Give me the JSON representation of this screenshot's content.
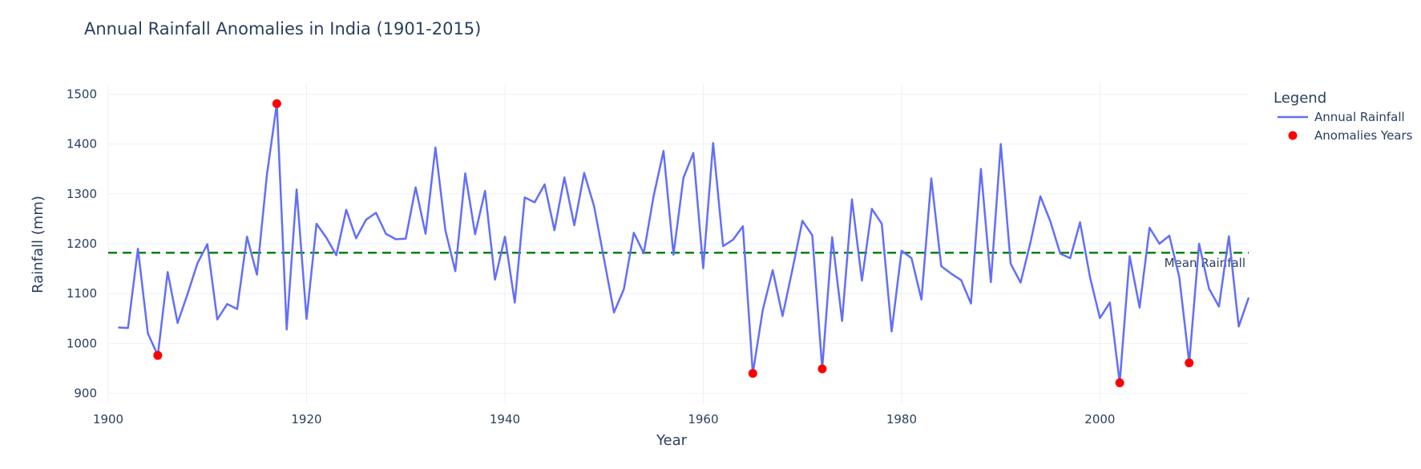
{
  "chart_data": {
    "type": "line",
    "title": "Annual Rainfall Anomalies in India (1901-2015)",
    "xlabel": "Year",
    "ylabel": "Rainfall (mm)",
    "xlim": [
      1900,
      2015
    ],
    "ylim": [
      880,
      1520
    ],
    "xticks": [
      1900,
      1920,
      1940,
      1960,
      1980,
      2000
    ],
    "yticks": [
      900,
      1000,
      1100,
      1200,
      1300,
      1400,
      1500
    ],
    "grid": true,
    "legend": {
      "title": "Legend",
      "position": "top-right"
    },
    "mean_line": {
      "value": 1182,
      "label": "Mean Rainfall",
      "color": "#008000"
    },
    "series": [
      {
        "name": "Annual Rainfall",
        "color": "#636efa",
        "x": [
          1901,
          1902,
          1903,
          1904,
          1905,
          1906,
          1907,
          1908,
          1909,
          1910,
          1911,
          1912,
          1913,
          1914,
          1915,
          1916,
          1917,
          1918,
          1919,
          1920,
          1921,
          1922,
          1923,
          1924,
          1925,
          1926,
          1927,
          1928,
          1929,
          1930,
          1931,
          1932,
          1933,
          1934,
          1935,
          1936,
          1937,
          1938,
          1939,
          1940,
          1941,
          1942,
          1943,
          1944,
          1945,
          1946,
          1947,
          1948,
          1949,
          1950,
          1951,
          1952,
          1953,
          1954,
          1955,
          1956,
          1957,
          1958,
          1959,
          1960,
          1961,
          1962,
          1963,
          1964,
          1965,
          1966,
          1967,
          1968,
          1969,
          1970,
          1971,
          1972,
          1973,
          1974,
          1975,
          1976,
          1977,
          1978,
          1979,
          1980,
          1981,
          1982,
          1983,
          1984,
          1985,
          1986,
          1987,
          1988,
          1989,
          1990,
          1991,
          1992,
          1993,
          1994,
          1995,
          1996,
          1997,
          1998,
          1999,
          2000,
          2001,
          2002,
          2003,
          2004,
          2005,
          2006,
          2007,
          2008,
          2009,
          2010,
          2011,
          2012,
          2013,
          2014,
          2015
        ],
        "values": [
          1032,
          1031,
          1190,
          1020,
          976,
          1143,
          1041,
          1099,
          1161,
          1199,
          1048,
          1079,
          1069,
          1214,
          1138,
          1338,
          1481,
          1028,
          1309,
          1049,
          1240,
          1212,
          1177,
          1268,
          1211,
          1248,
          1262,
          1220,
          1209,
          1210,
          1313,
          1220,
          1393,
          1227,
          1145,
          1341,
          1219,
          1306,
          1128,
          1214,
          1082,
          1293,
          1283,
          1319,
          1227,
          1333,
          1237,
          1342,
          1275,
          1169,
          1062,
          1109,
          1222,
          1181,
          1296,
          1386,
          1178,
          1332,
          1382,
          1151,
          1402,
          1195,
          1208,
          1235,
          940,
          1067,
          1147,
          1055,
          1149,
          1246,
          1217,
          949,
          1213,
          1045,
          1289,
          1126,
          1270,
          1240,
          1024,
          1186,
          1171,
          1088,
          1331,
          1155,
          1140,
          1127,
          1080,
          1350,
          1123,
          1400,
          1160,
          1122,
          1203,
          1295,
          1245,
          1180,
          1171,
          1243,
          1133,
          1051,
          1082,
          921,
          1175,
          1072,
          1232,
          1200,
          1216,
          1133,
          961,
          1200,
          1110,
          1074,
          1215,
          1034,
          1092
        ]
      },
      {
        "name": "Anomalies Years",
        "color": "#ff0000",
        "x": [
          1905,
          1917,
          1965,
          1972,
          2002,
          2009
        ],
        "values": [
          976,
          1481,
          940,
          949,
          921,
          961
        ]
      }
    ]
  }
}
